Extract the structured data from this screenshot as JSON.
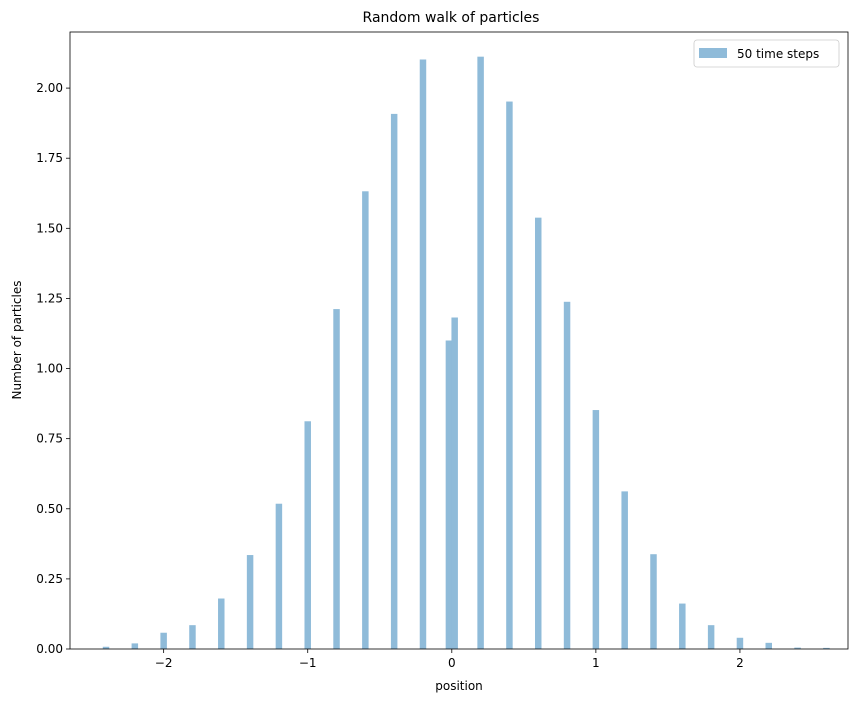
{
  "chart_data": {
    "type": "bar",
    "title": "Random walk of particles",
    "xlabel": "position",
    "ylabel": "Number of particles",
    "xlim": [
      -2.65,
      2.75
    ],
    "ylim": [
      0,
      2.2
    ],
    "grid": false,
    "legend_position": "top-right",
    "bar_width": 0.045,
    "bar_color": "#8fbbd9",
    "x_ticks": [
      -2,
      -1,
      0,
      1,
      2
    ],
    "x_tick_labels": [
      "−2",
      "−1",
      "0",
      "1",
      "2"
    ],
    "y_ticks": [
      0,
      0.25,
      0.5,
      0.75,
      1.0,
      1.25,
      1.5,
      1.75,
      2.0
    ],
    "y_tick_labels": [
      "0.00",
      "0.25",
      "0.50",
      "0.75",
      "1.00",
      "1.25",
      "1.50",
      "1.75",
      "2.00"
    ],
    "series": [
      {
        "name": "50 time steps",
        "x": [
          -2.4,
          -2.2,
          -2.0,
          -1.8,
          -1.6,
          -1.4,
          -1.2,
          -1.0,
          -0.8,
          -0.6,
          -0.4,
          -0.2,
          -0.02,
          0.02,
          0.2,
          0.4,
          0.6,
          0.8,
          1.0,
          1.2,
          1.4,
          1.6,
          1.8,
          2.0,
          2.2,
          2.4,
          2.6
        ],
        "values": [
          0.008,
          0.02,
          0.058,
          0.085,
          0.18,
          0.335,
          0.518,
          0.812,
          1.212,
          1.632,
          1.908,
          2.102,
          1.1,
          1.182,
          2.112,
          1.952,
          1.538,
          1.238,
          0.852,
          0.562,
          0.338,
          0.162,
          0.085,
          0.04,
          0.022,
          0.005,
          0.004
        ]
      }
    ]
  }
}
